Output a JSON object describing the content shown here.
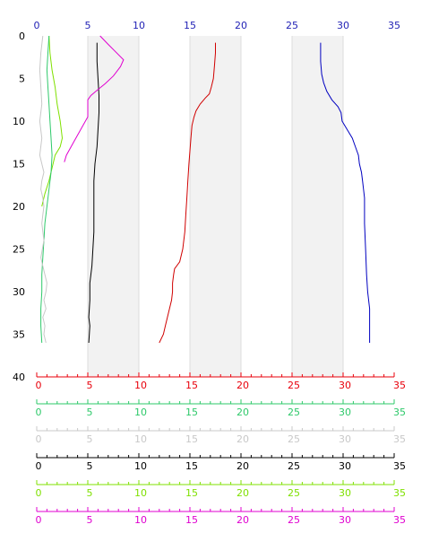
{
  "chart_data": {
    "type": "line",
    "title": "",
    "top_axis": {
      "range": [
        0,
        35
      ],
      "tick_labels": [
        "0",
        "5",
        "10",
        "15",
        "20",
        "25",
        "30",
        "35"
      ],
      "color": "#1f1fb4"
    },
    "y_axis": {
      "range": [
        0,
        40
      ],
      "inverted": true,
      "tick_labels": [
        "0",
        "5",
        "10",
        "15",
        "20",
        "25",
        "30",
        "35",
        "40"
      ]
    },
    "shaded_bands": [
      [
        5,
        10
      ],
      [
        15,
        20
      ],
      [
        25,
        30
      ]
    ],
    "bottom_axes": [
      {
        "range": [
          0,
          35
        ],
        "color": "#e8000b",
        "tick_labels": [
          "0",
          "5",
          "10",
          "15",
          "20",
          "25",
          "30",
          "35"
        ]
      },
      {
        "range": [
          0,
          35
        ],
        "color": "#2ec96a",
        "tick_labels": [
          "0",
          "5",
          "10",
          "15",
          "20",
          "25",
          "30",
          "35"
        ]
      },
      {
        "range": [
          0,
          35
        ],
        "color": "#c8c8c8",
        "tick_labels": [
          "0",
          "5",
          "10",
          "15",
          "20",
          "25",
          "30",
          "35"
        ]
      },
      {
        "range": [
          0,
          35
        ],
        "color": "#000000",
        "tick_labels": [
          "0",
          "5",
          "10",
          "15",
          "20",
          "25",
          "30",
          "35"
        ]
      },
      {
        "range": [
          0,
          35
        ],
        "color": "#7fe000",
        "tick_labels": [
          "0",
          "5",
          "10",
          "15",
          "20",
          "25",
          "30",
          "35"
        ]
      },
      {
        "range": [
          0,
          35
        ],
        "color": "#e000d0",
        "tick_labels": [
          "0",
          "5",
          "10",
          "15",
          "20",
          "25",
          "30",
          "35"
        ]
      }
    ],
    "series": [
      {
        "color": "#0000c0",
        "points": [
          [
            27.8,
            0.8
          ],
          [
            27.8,
            3.0
          ],
          [
            27.9,
            4.5
          ],
          [
            28.1,
            5.5
          ],
          [
            28.4,
            6.5
          ],
          [
            28.9,
            7.5
          ],
          [
            29.5,
            8.3
          ],
          [
            29.8,
            9.0
          ],
          [
            29.9,
            10.0
          ],
          [
            30.4,
            11.0
          ],
          [
            30.9,
            12.0
          ],
          [
            31.2,
            13.0
          ],
          [
            31.5,
            14.0
          ],
          [
            31.6,
            15.0
          ],
          [
            31.8,
            16.0
          ],
          [
            31.9,
            17.0
          ],
          [
            32.0,
            18.0
          ],
          [
            32.1,
            19.0
          ],
          [
            32.1,
            20.0
          ],
          [
            32.1,
            22.0
          ],
          [
            32.2,
            25.0
          ],
          [
            32.3,
            28.0
          ],
          [
            32.4,
            30.0
          ],
          [
            32.6,
            32.0
          ],
          [
            32.6,
            34.0
          ],
          [
            32.6,
            36.0
          ]
        ]
      },
      {
        "color": "#d00000",
        "points": [
          [
            17.5,
            0.8
          ],
          [
            17.5,
            2.0
          ],
          [
            17.4,
            3.5
          ],
          [
            17.3,
            5.0
          ],
          [
            17.1,
            6.0
          ],
          [
            16.9,
            6.8
          ],
          [
            16.5,
            7.3
          ],
          [
            16.0,
            8.0
          ],
          [
            15.6,
            8.8
          ],
          [
            15.4,
            9.5
          ],
          [
            15.2,
            10.5
          ],
          [
            15.1,
            12.0
          ],
          [
            15.0,
            13.5
          ],
          [
            14.9,
            15.0
          ],
          [
            14.8,
            17.0
          ],
          [
            14.7,
            19.0
          ],
          [
            14.6,
            21.0
          ],
          [
            14.5,
            23.0
          ],
          [
            14.3,
            25.0
          ],
          [
            14.0,
            26.5
          ],
          [
            13.5,
            27.3
          ],
          [
            13.4,
            28.0
          ],
          [
            13.3,
            29.0
          ],
          [
            13.3,
            30.0
          ],
          [
            13.2,
            31.0
          ],
          [
            13.0,
            32.0
          ],
          [
            12.8,
            33.0
          ],
          [
            12.6,
            34.0
          ],
          [
            12.4,
            35.0
          ],
          [
            12.0,
            36.0
          ]
        ]
      },
      {
        "color": "#000000",
        "points": [
          [
            5.9,
            0.8
          ],
          [
            5.9,
            3.0
          ],
          [
            6.0,
            5.0
          ],
          [
            6.1,
            7.0
          ],
          [
            6.1,
            9.0
          ],
          [
            6.0,
            11.0
          ],
          [
            5.9,
            13.0
          ],
          [
            5.7,
            15.0
          ],
          [
            5.6,
            17.0
          ],
          [
            5.6,
            19.0
          ],
          [
            5.6,
            21.0
          ],
          [
            5.6,
            23.0
          ],
          [
            5.5,
            25.0
          ],
          [
            5.4,
            27.0
          ],
          [
            5.2,
            29.0
          ],
          [
            5.2,
            31.0
          ],
          [
            5.1,
            33.0
          ],
          [
            5.2,
            34.0
          ],
          [
            5.1,
            36.0
          ]
        ]
      },
      {
        "color": "#e000d0",
        "points": [
          [
            6.2,
            0.0
          ],
          [
            7.0,
            1.0
          ],
          [
            8.5,
            2.8
          ],
          [
            8.2,
            3.6
          ],
          [
            7.5,
            4.7
          ],
          [
            6.7,
            5.6
          ],
          [
            6.0,
            6.3
          ],
          [
            5.3,
            7.0
          ],
          [
            5.0,
            7.5
          ],
          [
            5.0,
            8.5
          ],
          [
            5.0,
            9.5
          ],
          [
            4.3,
            11.0
          ],
          [
            3.6,
            12.5
          ],
          [
            2.9,
            14.0
          ],
          [
            2.7,
            14.8
          ]
        ]
      },
      {
        "color": "#7fe000",
        "points": [
          [
            1.2,
            0.0
          ],
          [
            1.3,
            2.0
          ],
          [
            1.5,
            4.0
          ],
          [
            1.8,
            6.0
          ],
          [
            2.0,
            8.0
          ],
          [
            2.3,
            10.0
          ],
          [
            2.5,
            12.0
          ],
          [
            2.3,
            13.0
          ],
          [
            1.8,
            14.0
          ],
          [
            1.5,
            15.5
          ],
          [
            1.2,
            17.0
          ],
          [
            0.8,
            18.5
          ],
          [
            0.5,
            20.0
          ]
        ]
      },
      {
        "color": "#2ec96a",
        "points": [
          [
            1.2,
            0.0
          ],
          [
            1.1,
            2.0
          ],
          [
            1.0,
            4.0
          ],
          [
            1.1,
            6.0
          ],
          [
            1.2,
            8.0
          ],
          [
            1.3,
            10.0
          ],
          [
            1.4,
            12.0
          ],
          [
            1.5,
            14.0
          ],
          [
            1.4,
            16.0
          ],
          [
            1.2,
            18.0
          ],
          [
            1.0,
            20.0
          ],
          [
            0.8,
            22.0
          ],
          [
            0.7,
            24.0
          ],
          [
            0.6,
            26.0
          ],
          [
            0.5,
            28.0
          ],
          [
            0.5,
            30.0
          ],
          [
            0.4,
            32.0
          ],
          [
            0.4,
            34.0
          ],
          [
            0.5,
            36.0
          ]
        ]
      },
      {
        "color": "#c8c8c8",
        "points": [
          [
            0.6,
            0.0
          ],
          [
            0.4,
            2.0
          ],
          [
            0.3,
            4.0
          ],
          [
            0.4,
            6.0
          ],
          [
            0.5,
            8.0
          ],
          [
            0.3,
            10.0
          ],
          [
            0.5,
            12.0
          ],
          [
            0.3,
            14.0
          ],
          [
            0.5,
            15.0
          ],
          [
            0.7,
            16.0
          ],
          [
            0.5,
            17.0
          ],
          [
            0.4,
            18.0
          ],
          [
            0.6,
            19.0
          ],
          [
            0.7,
            20.0
          ],
          [
            0.6,
            21.0
          ],
          [
            0.5,
            22.0
          ],
          [
            0.7,
            24.0
          ],
          [
            0.4,
            26.0
          ],
          [
            0.6,
            27.0
          ],
          [
            0.8,
            28.0
          ],
          [
            1.0,
            29.0
          ],
          [
            0.9,
            30.0
          ],
          [
            0.7,
            31.0
          ],
          [
            0.9,
            32.0
          ],
          [
            0.6,
            33.0
          ],
          [
            0.8,
            34.0
          ],
          [
            0.7,
            35.0
          ],
          [
            0.9,
            36.0
          ]
        ]
      }
    ]
  }
}
